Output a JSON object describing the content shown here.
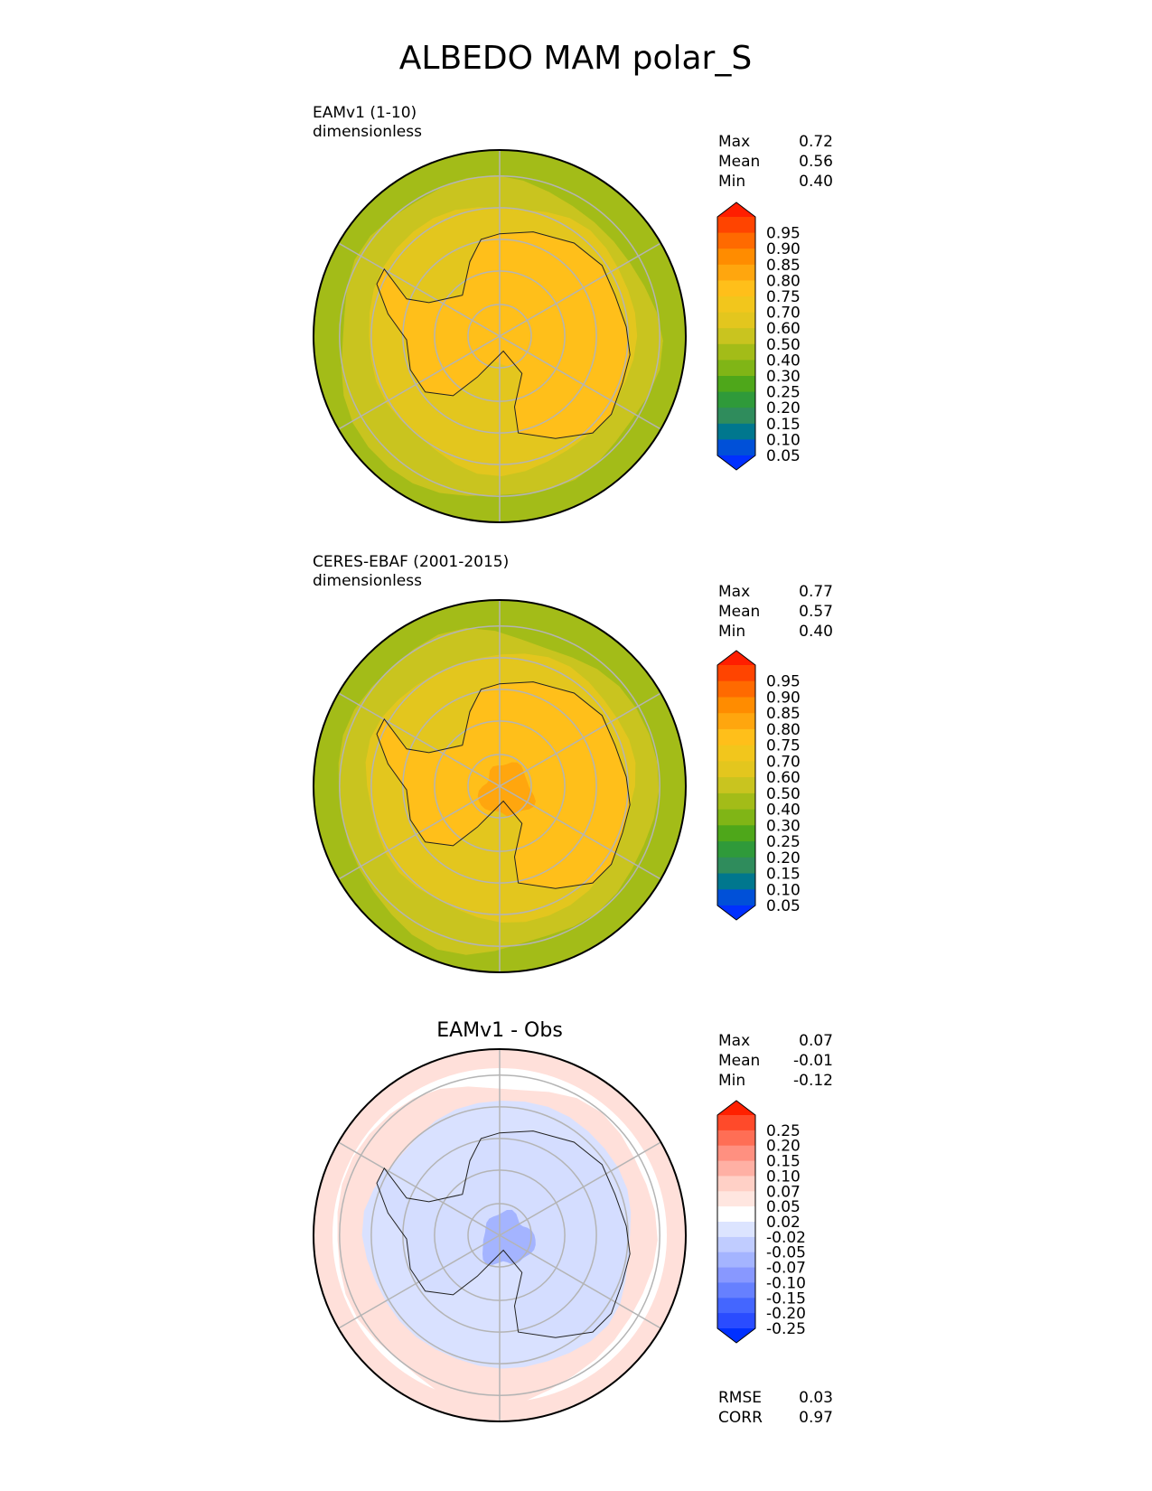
{
  "figure_title": "ALBEDO MAM polar_S",
  "chart_data": [
    {
      "type": "heatmap",
      "projection": "south-polar-stereographic",
      "title": "",
      "model_label": "EAMv1 (1-10)",
      "units": "dimensionless",
      "stats": [
        {
          "label": "Max",
          "value": "0.72"
        },
        {
          "label": "Mean",
          "value": "0.56"
        },
        {
          "label": "Min",
          "value": "0.40"
        }
      ],
      "colorbar": {
        "ticks": [
          "0.95",
          "0.90",
          "0.85",
          "0.80",
          "0.75",
          "0.70",
          "0.60",
          "0.50",
          "0.40",
          "0.30",
          "0.25",
          "0.20",
          "0.15",
          "0.10",
          "0.05"
        ],
        "colors": [
          "#ff1e00",
          "#ff4400",
          "#ff6a00",
          "#ff8c00",
          "#ffa60e",
          "#ffbf1a",
          "#f2c61c",
          "#e3c61e",
          "#c9c41f",
          "#a3bc18",
          "#80b516",
          "#4ea71a",
          "#2f9a3a",
          "#2f8c5c",
          "#00778e",
          "#0050d8",
          "#0030ff"
        ]
      },
      "field": {
        "ocean_color": "#a3bc18",
        "ring_color": "#c9c41f",
        "ring2_color": "#e3c61e",
        "continent_color": "#ffbf1a",
        "hotspot_color": "#ffbf1a"
      }
    },
    {
      "type": "heatmap",
      "projection": "south-polar-stereographic",
      "title": "",
      "model_label": "CERES-EBAF (2001-2015)",
      "units": "dimensionless",
      "stats": [
        {
          "label": "Max",
          "value": "0.77"
        },
        {
          "label": "Mean",
          "value": "0.57"
        },
        {
          "label": "Min",
          "value": "0.40"
        }
      ],
      "colorbar": {
        "ticks": [
          "0.95",
          "0.90",
          "0.85",
          "0.80",
          "0.75",
          "0.70",
          "0.60",
          "0.50",
          "0.40",
          "0.30",
          "0.25",
          "0.20",
          "0.15",
          "0.10",
          "0.05"
        ],
        "colors": [
          "#ff1e00",
          "#ff4400",
          "#ff6a00",
          "#ff8c00",
          "#ffa60e",
          "#ffbf1a",
          "#f2c61c",
          "#e3c61e",
          "#c9c41f",
          "#a3bc18",
          "#80b516",
          "#4ea71a",
          "#2f9a3a",
          "#2f8c5c",
          "#00778e",
          "#0050d8",
          "#0030ff"
        ]
      },
      "field": {
        "ocean_color": "#a3bc18",
        "ring_color": "#c9c41f",
        "ring2_color": "#e3c61e",
        "continent_color": "#ffbf1a",
        "hotspot_color": "#ffa60e"
      }
    },
    {
      "type": "heatmap",
      "projection": "south-polar-stereographic",
      "title": "EAMv1 - Obs",
      "model_label": "",
      "units": "",
      "stats": [
        {
          "label": "Max",
          "value": "0.07"
        },
        {
          "label": "Mean",
          "value": "-0.01"
        },
        {
          "label": "Min",
          "value": "-0.12"
        }
      ],
      "colorbar": {
        "ticks": [
          "0.25",
          "0.20",
          "0.15",
          "0.10",
          "0.07",
          "0.05",
          "0.02",
          "-0.02",
          "-0.05",
          "-0.07",
          "-0.10",
          "-0.15",
          "-0.20",
          "-0.25"
        ],
        "colors": [
          "#ff2000",
          "#ff4a2a",
          "#ff6e55",
          "#ff9080",
          "#ffb0a4",
          "#ffd0c6",
          "#ffe6e0",
          "#ffffff",
          "#dce4ff",
          "#c0ccff",
          "#a4b4ff",
          "#8898ff",
          "#6680ff",
          "#4466ff",
          "#2a4cff",
          "#0030ff"
        ]
      },
      "field": {
        "ocean_color": "#ffffff",
        "ring_color": "#ffe0da",
        "ring2_color": "#d9e1ff",
        "continent_color": "#d4ddff",
        "hotspot_color": "#a4b4ff"
      },
      "extra_stats": [
        {
          "label": "RMSE",
          "value": "0.03"
        },
        {
          "label": "CORR",
          "value": "0.97"
        }
      ]
    }
  ]
}
